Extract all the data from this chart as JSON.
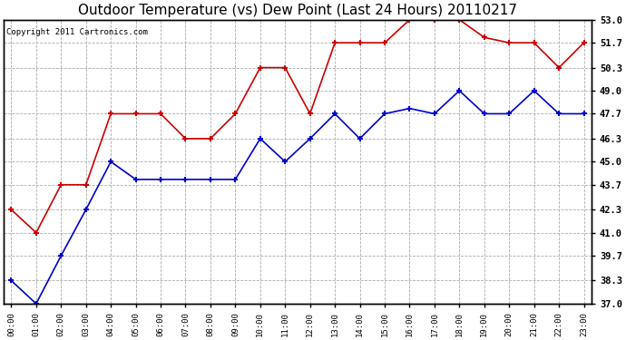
{
  "title": "Outdoor Temperature (vs) Dew Point (Last 24 Hours) 20110217",
  "copyright": "Copyright 2011 Cartronics.com",
  "x_labels": [
    "00:00",
    "01:00",
    "02:00",
    "03:00",
    "04:00",
    "05:00",
    "06:00",
    "07:00",
    "08:00",
    "09:00",
    "10:00",
    "11:00",
    "12:00",
    "13:00",
    "14:00",
    "15:00",
    "16:00",
    "17:00",
    "18:00",
    "19:00",
    "20:00",
    "21:00",
    "22:00",
    "23:00"
  ],
  "temp_data": [
    42.3,
    41.0,
    43.7,
    43.7,
    47.7,
    47.7,
    47.7,
    46.3,
    46.3,
    47.7,
    50.3,
    50.3,
    47.7,
    51.7,
    51.7,
    51.7,
    53.0,
    53.0,
    53.0,
    52.0,
    51.7,
    51.7,
    50.3,
    51.7
  ],
  "dew_data": [
    38.3,
    37.0,
    39.7,
    42.3,
    45.0,
    44.0,
    44.0,
    44.0,
    44.0,
    44.0,
    46.3,
    45.0,
    46.3,
    47.7,
    46.3,
    47.7,
    48.0,
    47.7,
    49.0,
    47.7,
    47.7,
    49.0,
    47.7,
    47.7
  ],
  "temp_color": "#cc0000",
  "dew_color": "#0000cc",
  "ylim": [
    37.0,
    53.0
  ],
  "yticks": [
    37.0,
    38.3,
    39.7,
    41.0,
    42.3,
    43.7,
    45.0,
    46.3,
    47.7,
    49.0,
    50.3,
    51.7,
    53.0
  ],
  "bg_color": "#ffffff",
  "grid_color": "#aaaaaa",
  "title_fontsize": 11,
  "copyright_fontsize": 6.5
}
